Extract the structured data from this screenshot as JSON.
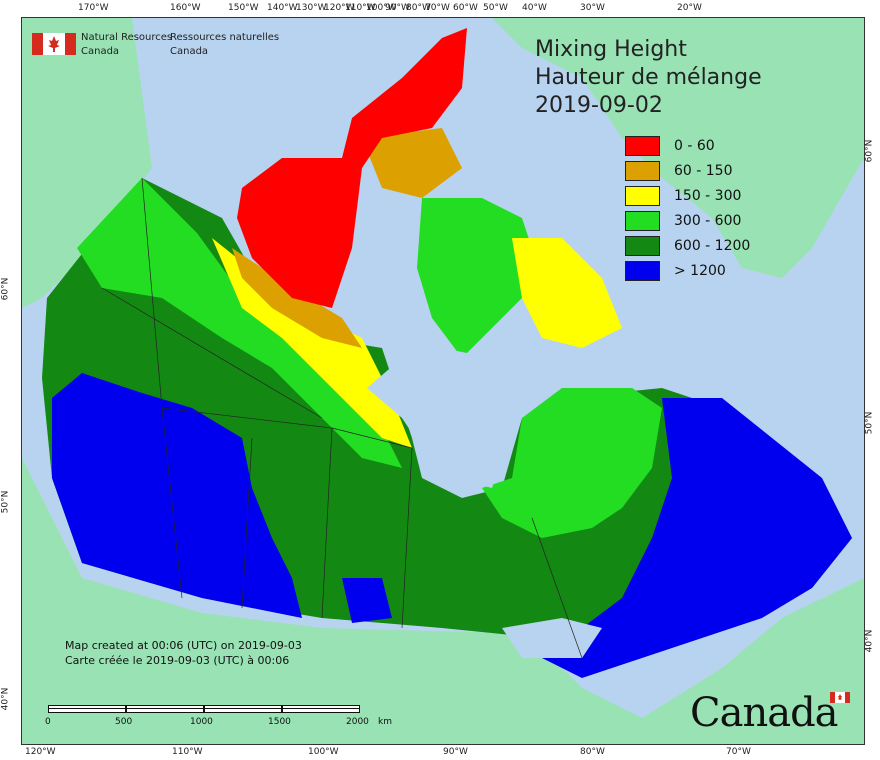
{
  "title": {
    "line1": "Mixing Height",
    "line2": "Hauteur de mélange",
    "date": "2019-09-02"
  },
  "agency": {
    "en_line1": "Natural Resources",
    "en_line2": "Canada",
    "fr_line1": "Ressources naturelles",
    "fr_line2": "Canada"
  },
  "legend": [
    {
      "label": "0 - 60",
      "color": "#ff0000"
    },
    {
      "label": "60 - 150",
      "color": "#dca000"
    },
    {
      "label": "150 - 300",
      "color": "#ffff00"
    },
    {
      "label": "300 - 600",
      "color": "#22dd22"
    },
    {
      "label": "600 - 1200",
      "color": "#138913"
    },
    {
      "label": "> 1200",
      "color": "#0000ee"
    }
  ],
  "created": {
    "en": "Map created at 00:06 (UTC) on 2019-09-03",
    "fr": "Carte créée le 2019-09-03 (UTC) à 00:06"
  },
  "scale": {
    "labels": [
      "0",
      "500",
      "1000",
      "1500",
      "2000"
    ],
    "unit": "km"
  },
  "wordmark": "Canada",
  "top_ticks": [
    "170°W",
    "160°W",
    "150°W",
    "140°W",
    "130°W",
    "120°W",
    "110°W",
    "100°W",
    "90°W",
    "80°W",
    "70°W",
    "60°W",
    "50°W",
    "40°W",
    "30°W",
    "20°W"
  ],
  "bottom_ticks": [
    "120°W",
    "110°W",
    "100°W",
    "90°W",
    "80°W",
    "70°W"
  ],
  "left_ticks": [
    "60°N",
    "50°N",
    "40°N"
  ],
  "right_ticks": [
    "60°N",
    "50°N",
    "40°N"
  ],
  "colors": {
    "water": "#b8d3ef",
    "land_other": "#98e2b4",
    "border": "#222222"
  }
}
